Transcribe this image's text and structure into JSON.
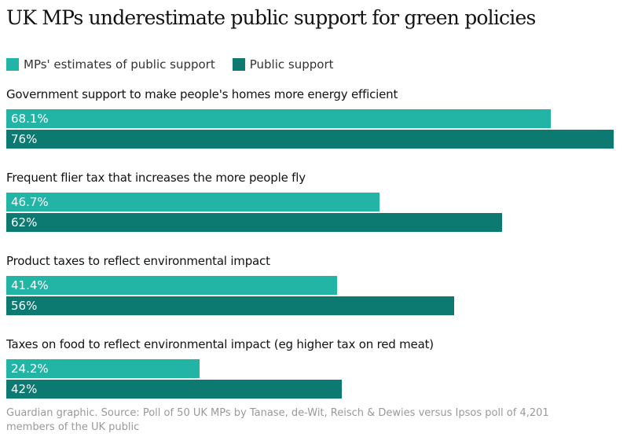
{
  "chart_data": {
    "type": "bar",
    "orientation": "horizontal",
    "title": "UK MPs underestimate public support for green policies",
    "categories": [
      "Government support to make people's homes more energy efficient",
      "Frequent flier tax that increases the more people fly",
      "Product taxes to reflect environmental impact",
      "Taxes on food to reflect environmental impact (eg higher tax on red meat)"
    ],
    "series": [
      {
        "name": "MPs' estimates of public support",
        "color": "#22b5a6",
        "values": [
          68.1,
          46.7,
          41.4,
          24.2
        ],
        "labels": [
          "68.1%",
          "46.7%",
          "41.4%",
          "24.2%"
        ]
      },
      {
        "name": "Public support",
        "color": "#0c7a70",
        "values": [
          76,
          62,
          56,
          42
        ],
        "labels": [
          "76%",
          "62%",
          "56%",
          "42%"
        ]
      }
    ],
    "xlim": [
      0,
      76
    ],
    "legend_position": "top-left",
    "source": "Guardian graphic. Source: Poll of 50 UK MPs by Tanase, de-Wit, Reisch & Dewies versus Ipsos poll of 4,201 members of the UK public"
  }
}
